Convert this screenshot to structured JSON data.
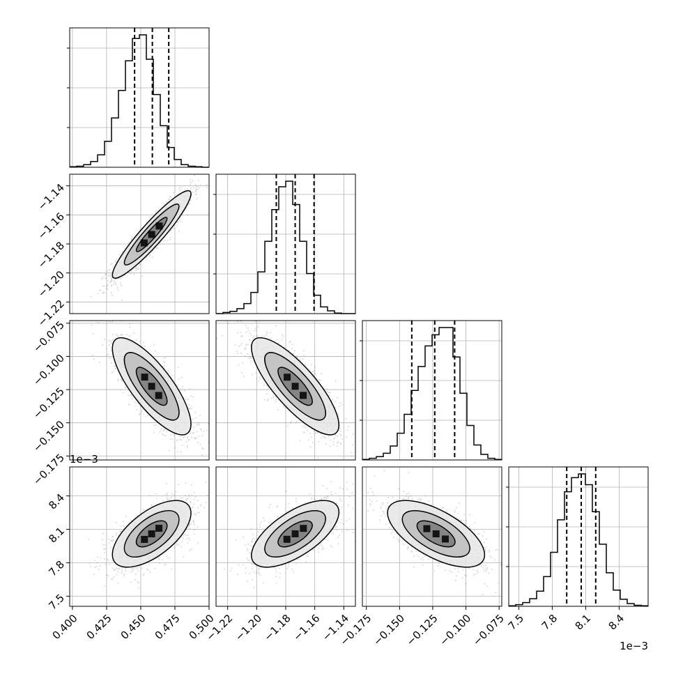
{
  "chart_data": {
    "type": "corner",
    "parameters": [
      {
        "range": [
          0.398,
          0.5
        ],
        "ticks": [
          "0.400",
          "0.425",
          "0.450",
          "0.475",
          "0.500"
        ],
        "tick_values": [
          0.4,
          0.425,
          0.45,
          0.475,
          0.5
        ]
      },
      {
        "range": [
          -1.228,
          -1.132
        ],
        "ticks": [
          "−1.22",
          "−1.20",
          "−1.18",
          "−1.16",
          "−1.14"
        ],
        "tick_values": [
          -1.22,
          -1.2,
          -1.18,
          -1.16,
          -1.14
        ]
      },
      {
        "range": [
          -0.178,
          -0.073
        ],
        "ticks": [
          "−0.175",
          "−0.150",
          "−0.125",
          "−0.100",
          "−0.075"
        ],
        "tick_values": [
          -0.175,
          -0.15,
          -0.125,
          -0.1,
          -0.075
        ]
      },
      {
        "range": [
          7.41,
          8.66
        ],
        "ticks": [
          "7.5",
          "7.8",
          "8.1",
          "8.4"
        ],
        "tick_values": [
          7.5,
          7.8,
          8.1,
          8.4
        ],
        "offset_text": "1e−3"
      }
    ],
    "histograms": [
      {
        "edges_start": 0.398,
        "bin_width": 0.0051,
        "counts": [
          1,
          2,
          5,
          11,
          24,
          50,
          95,
          148,
          205,
          248,
          255,
          208,
          140,
          80,
          38,
          15,
          5,
          2,
          1,
          0
        ],
        "quantiles": [
          0.4455,
          0.4585,
          0.4705
        ]
      },
      {
        "edges_start": -1.228,
        "bin_width": 0.0048,
        "counts": [
          0,
          2,
          4,
          9,
          18,
          38,
          75,
          130,
          187,
          228,
          238,
          196,
          130,
          72,
          33,
          12,
          5,
          1,
          0,
          0
        ],
        "quantiles": [
          -1.1865,
          -1.1735,
          -1.1605
        ]
      },
      {
        "edges_start": -0.178,
        "bin_width": 0.00525,
        "counts": [
          1,
          3,
          6,
          12,
          25,
          48,
          82,
          125,
          168,
          205,
          225,
          238,
          238,
          185,
          120,
          62,
          27,
          10,
          3,
          1
        ],
        "quantiles": [
          -0.1408,
          -0.1235,
          -0.1085
        ]
      },
      {
        "edges_start": 7.41,
        "bin_width": 0.0625,
        "counts": [
          1,
          3,
          7,
          14,
          28,
          55,
          100,
          160,
          212,
          238,
          245,
          225,
          175,
          115,
          62,
          30,
          13,
          5,
          2,
          1
        ],
        "quantiles": [
          7.93,
          8.06,
          8.19
        ]
      }
    ],
    "pairs": [
      {
        "row": 1,
        "col": 0,
        "corr": 0.93
      },
      {
        "row": 2,
        "col": 0,
        "corr": -0.78
      },
      {
        "row": 2,
        "col": 1,
        "corr": -0.8
      },
      {
        "row": 3,
        "col": 0,
        "corr": 0.62
      },
      {
        "row": 3,
        "col": 1,
        "corr": 0.65
      },
      {
        "row": 3,
        "col": 2,
        "corr": -0.63
      }
    ],
    "means": [
      0.458,
      -1.1735,
      -0.1225,
      8.06
    ],
    "sigmas": [
      0.0125,
      0.0131,
      0.0159,
      0.13
    ],
    "grid": true,
    "line_color": "#000000",
    "scatter_color": "#7f7f7f"
  }
}
